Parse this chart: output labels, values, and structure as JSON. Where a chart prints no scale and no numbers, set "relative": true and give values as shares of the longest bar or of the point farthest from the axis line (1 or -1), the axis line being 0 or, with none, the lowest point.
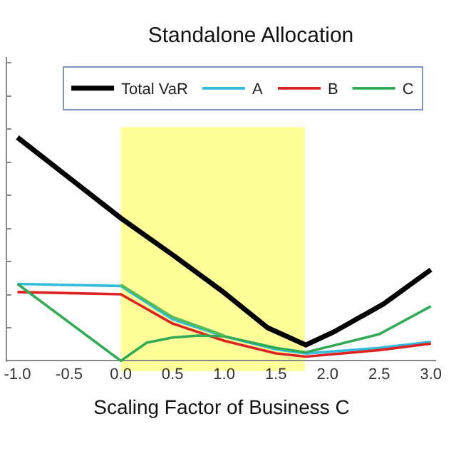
{
  "chart_data": {
    "type": "line",
    "title": "Standalone Allocation",
    "xlabel": "Scaling Factor of Business C",
    "relative": true,
    "xlim": [
      -1.1,
      3.05
    ],
    "xticks": [
      {
        "value": -1,
        "label": "-1.0"
      },
      {
        "value": -0.5,
        "label": "-0.5"
      },
      {
        "value": 0,
        "label": "0.0"
      },
      {
        "value": 0.5,
        "label": "0.5"
      },
      {
        "value": 1,
        "label": "1.0"
      },
      {
        "value": 1.5,
        "label": "1.5"
      },
      {
        "value": 2,
        "label": "2.0"
      },
      {
        "value": 2.5,
        "label": "2.5"
      },
      {
        "value": 3,
        "label": "3.0"
      }
    ],
    "series": [
      {
        "name": "Total VaR",
        "color": "#000000",
        "x": [
          -1,
          0,
          0.5,
          0.98,
          1.42,
          1.79,
          2.06,
          2.54,
          3.0
        ],
        "values": [
          1.0,
          0.639,
          0.475,
          0.312,
          0.148,
          0.071,
          0.129,
          0.254,
          0.408
        ]
      },
      {
        "name": "A",
        "color": "#33bbdd",
        "x": [
          -1,
          0,
          0.5,
          1.0,
          1.5,
          1.79,
          2.5,
          3.0
        ],
        "values": [
          0.344,
          0.335,
          0.186,
          0.11,
          0.052,
          0.033,
          0.058,
          0.085
        ]
      },
      {
        "name": "B",
        "color": "#dd2222",
        "x": [
          -1,
          0,
          0.5,
          1.0,
          1.5,
          1.79,
          2.5,
          3.0
        ],
        "values": [
          0.308,
          0.298,
          0.167,
          0.09,
          0.033,
          0.019,
          0.048,
          0.077
        ]
      },
      {
        "name": "C",
        "color": "#33aa55",
        "x": [
          -1,
          0,
          0.25,
          0.5,
          0.75,
          1.0,
          1.5,
          1.79,
          2.5,
          3.0
        ],
        "values": [
          0.344,
          0,
          0.081,
          0.104,
          0.113,
          0.11,
          0.058,
          0.038,
          0.119,
          0.244
        ]
      },
      {
        "color": "#55bb55",
        "x": [
          0,
          0.5,
          1.0
        ],
        "values": [
          0.34,
          0.196,
          0.113
        ]
      }
    ],
    "bands": [
      {
        "axis": "x",
        "from": 0,
        "to": 1.78,
        "color": "#ffff99"
      }
    ],
    "legend": "top",
    "grid": false,
    "marker": "none",
    "line_style": "solid"
  }
}
